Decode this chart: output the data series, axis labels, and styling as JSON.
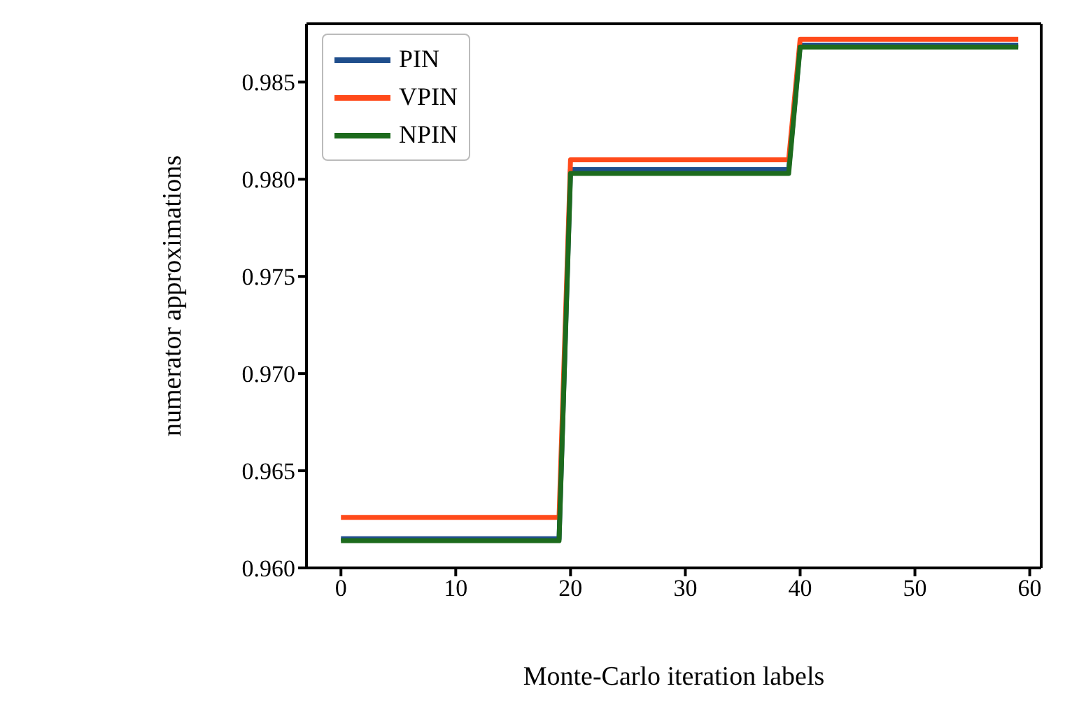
{
  "chart_data": {
    "type": "line",
    "xlabel": "Monte-Carlo iteration labels",
    "ylabel": "numerator approximations",
    "x": [
      0,
      19,
      20,
      39,
      40,
      59
    ],
    "series": [
      {
        "name": "PIN",
        "color": "#1f4e8c",
        "values": [
          0.9615,
          0.9615,
          0.9805,
          0.9805,
          0.9869,
          0.9869
        ]
      },
      {
        "name": "VPIN",
        "color": "#ff4a1a",
        "values": [
          0.9626,
          0.9626,
          0.981,
          0.981,
          0.9872,
          0.9872
        ]
      },
      {
        "name": "NPIN",
        "color": "#1d6b1d",
        "values": [
          0.9614,
          0.9614,
          0.9803,
          0.9803,
          0.9868,
          0.9868
        ]
      }
    ],
    "xlim": [
      -3,
      61
    ],
    "xticks": [
      0,
      10,
      20,
      30,
      40,
      50,
      60
    ],
    "ylim": [
      0.96,
      0.988
    ],
    "yticks": [
      {
        "value": 0.96,
        "label": "0.960"
      },
      0.965,
      {
        "value": 0.97,
        "label": "0.970"
      },
      0.975,
      {
        "value": 0.98,
        "label": "0.980"
      },
      0.985
    ],
    "grid": false,
    "legend": "top left",
    "marker": "none",
    "line_style": "solid"
  }
}
